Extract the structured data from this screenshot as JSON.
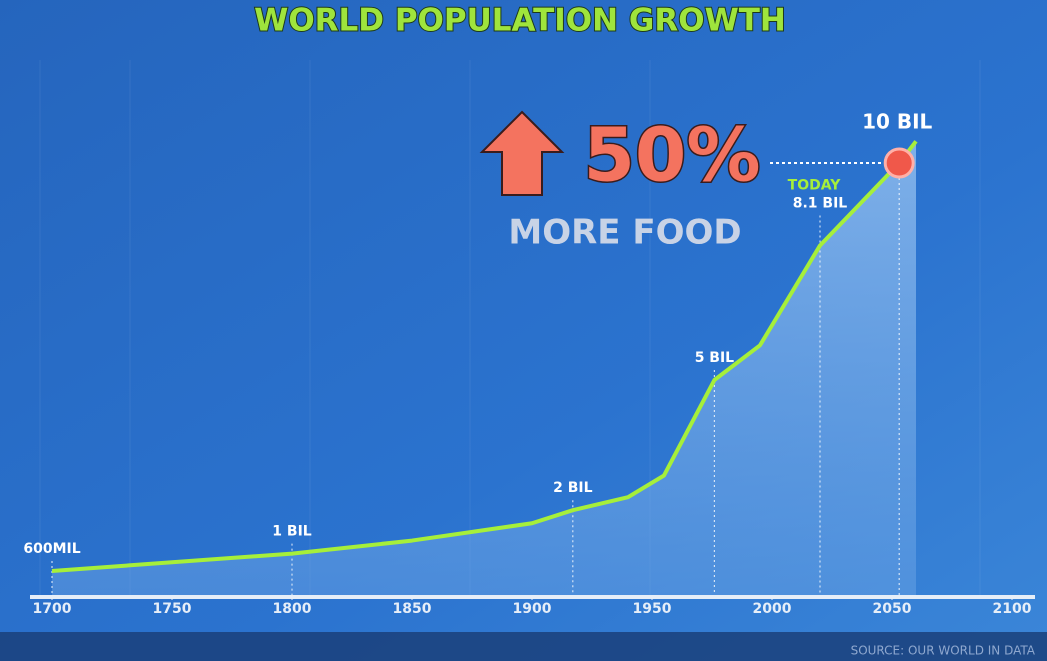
{
  "chart_data": {
    "type": "line",
    "title": "WORLD POPULATION GROWTH",
    "x": [
      1700,
      1750,
      1800,
      1850,
      1900,
      1917,
      1940,
      1955,
      1976,
      1995,
      2020,
      2053,
      2060
    ],
    "values": [
      0.6,
      0.8,
      1.0,
      1.3,
      1.7,
      2.0,
      2.3,
      2.8,
      5.0,
      5.8,
      8.1,
      10,
      10.5
    ],
    "value_labels": [
      "600MIL",
      null,
      "1 BIL",
      null,
      null,
      "2 BIL",
      null,
      null,
      "5 BIL",
      null,
      "8.1 BIL",
      "10 BIL",
      null
    ],
    "today_label": "TODAY",
    "callout": "50%",
    "callout_subtitle": "MORE FOOD",
    "source": "SOURCE: OUR WORLD IN DATA",
    "xlim": [
      1700,
      2100
    ],
    "xticks": [
      1700,
      1750,
      1800,
      1850,
      1900,
      1950,
      2000,
      2050,
      2100
    ],
    "ylim": [
      0,
      12
    ],
    "color": "#a6ef3a",
    "marker_color": "#f0584a"
  }
}
